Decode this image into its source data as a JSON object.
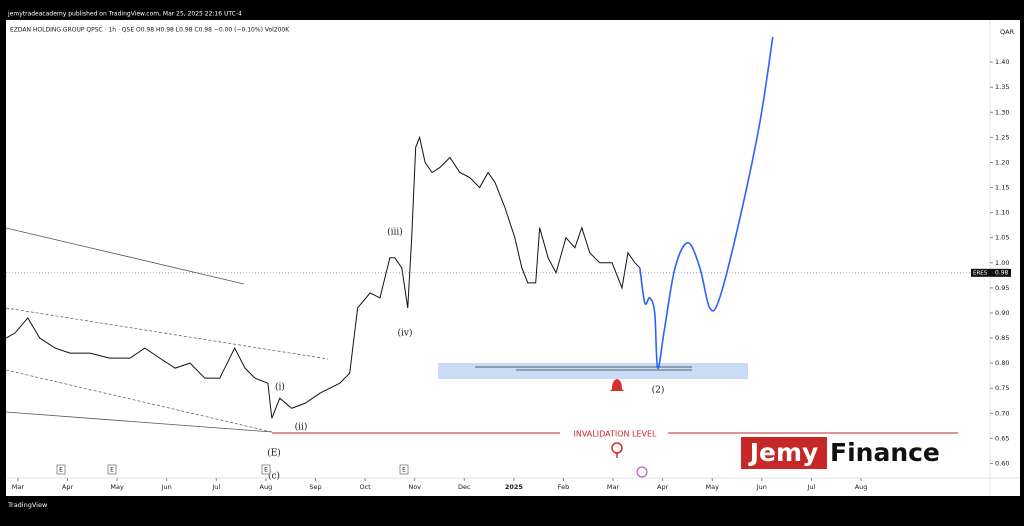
{
  "header": {
    "published": "jemytradeacademy published on TradingView.com, Mar 25, 2025 22:16 UTC-4",
    "footer": "TradingView"
  },
  "chart_data": {
    "type": "line",
    "title": "EZDAN HOLDING GROUP QPSC · 1h · QSE  O0.98  H0.98  L0.98  C0.98  −0.00 (−0.10%)  Vol200K",
    "currency": "QAR",
    "xlim": [
      -0.24,
      19.6
    ],
    "ylim": [
      0.571,
      1.484
    ],
    "xticks": [
      {
        "value": 0,
        "label": "Mar"
      },
      {
        "value": 1,
        "label": "Apr"
      },
      {
        "value": 2,
        "label": "May"
      },
      {
        "value": 3,
        "label": "Jun"
      },
      {
        "value": 4,
        "label": "Jul"
      },
      {
        "value": 5,
        "label": "Aug"
      },
      {
        "value": 6,
        "label": "Sep"
      },
      {
        "value": 7,
        "label": "Oct"
      },
      {
        "value": 8,
        "label": "Nov"
      },
      {
        "value": 9,
        "label": "Dec"
      },
      {
        "value": 10,
        "label": "2025"
      },
      {
        "value": 11,
        "label": "Feb"
      },
      {
        "value": 12,
        "label": "Mar"
      },
      {
        "value": 13,
        "label": "Apr"
      },
      {
        "value": 14,
        "label": "May"
      },
      {
        "value": 15,
        "label": "Jun"
      },
      {
        "value": 16,
        "label": "Jul"
      },
      {
        "value": 17,
        "label": "Aug"
      }
    ],
    "yticks": [
      {
        "value": 0.6,
        "label": "0.60"
      },
      {
        "value": 0.65,
        "label": "0.65"
      },
      {
        "value": 0.7,
        "label": "0.70"
      },
      {
        "value": 0.75,
        "label": "0.75"
      },
      {
        "value": 0.8,
        "label": "0.80"
      },
      {
        "value": 0.85,
        "label": "0.85"
      },
      {
        "value": 0.9,
        "label": "0.90"
      },
      {
        "value": 0.95,
        "label": "0.95"
      },
      {
        "value": 1.0,
        "label": "1.00"
      },
      {
        "value": 1.05,
        "label": "1.05"
      },
      {
        "value": 1.1,
        "label": "1.10"
      },
      {
        "value": 1.15,
        "label": "1.15"
      },
      {
        "value": 1.2,
        "label": "1.20"
      },
      {
        "value": 1.25,
        "label": "1.25"
      },
      {
        "value": 1.3,
        "label": "1.30"
      },
      {
        "value": 1.35,
        "label": "1.35"
      },
      {
        "value": 1.4,
        "label": "1.40"
      }
    ],
    "series": [
      {
        "color": "#111111",
        "x": [
          -0.24,
          -0.06,
          0.2,
          0.44,
          0.75,
          1.05,
          1.45,
          1.85,
          2.26,
          2.56,
          2.86,
          3.17,
          3.47,
          3.77,
          4.07,
          4.37,
          4.58,
          4.78,
          5.04,
          5.12,
          5.28,
          5.52,
          5.79,
          6.09,
          6.49,
          6.69,
          6.85,
          7.1,
          7.3,
          7.5,
          7.6,
          7.74,
          7.86,
          7.94,
          8.02,
          8.1,
          8.21,
          8.35,
          8.51,
          8.71,
          8.91,
          9.11,
          9.31,
          9.48,
          9.62,
          9.82,
          10.02,
          10.16,
          10.28,
          10.44,
          10.52,
          10.69,
          10.85,
          11.05,
          11.23,
          11.37,
          11.53,
          11.73,
          11.98,
          12.18,
          12.3,
          12.44,
          12.54
        ],
        "values": [
          0.85,
          0.86,
          0.89,
          0.85,
          0.83,
          0.82,
          0.82,
          0.81,
          0.81,
          0.83,
          0.81,
          0.79,
          0.8,
          0.77,
          0.77,
          0.83,
          0.79,
          0.77,
          0.76,
          0.69,
          0.73,
          0.71,
          0.72,
          0.74,
          0.76,
          0.78,
          0.91,
          0.94,
          0.93,
          1.01,
          1.01,
          0.99,
          0.91,
          1.05,
          1.23,
          1.25,
          1.2,
          1.18,
          1.19,
          1.21,
          1.18,
          1.17,
          1.15,
          1.18,
          1.16,
          1.11,
          1.05,
          0.99,
          0.96,
          0.96,
          1.07,
          1.01,
          0.98,
          1.05,
          1.03,
          1.07,
          1.02,
          1.0,
          1.0,
          0.95,
          1.02,
          1.0,
          0.99
        ]
      },
      {
        "color": "#2962ff",
        "x": [
          12.54,
          12.64,
          12.74,
          12.84,
          12.9,
          13.04,
          13.25,
          13.51,
          13.75,
          13.95,
          14.15,
          14.56,
          14.96,
          15.22
        ],
        "values": [
          0.99,
          0.92,
          0.93,
          0.9,
          0.79,
          0.87,
          0.99,
          1.04,
          0.99,
          0.91,
          0.93,
          1.09,
          1.28,
          1.45
        ]
      }
    ],
    "price_tag": {
      "name": "ERES",
      "value": 0.98,
      "label": "0.98"
    },
    "annotations": [
      "(iii)",
      "(iv)",
      "(i)",
      "(ii)",
      "(E)",
      "(c)",
      "(2)"
    ],
    "invalidation": "INVALIDATION LEVEL",
    "brand": [
      "Jemy",
      "Finance"
    ],
    "events": [
      "E",
      "E",
      "E",
      "E"
    ]
  }
}
